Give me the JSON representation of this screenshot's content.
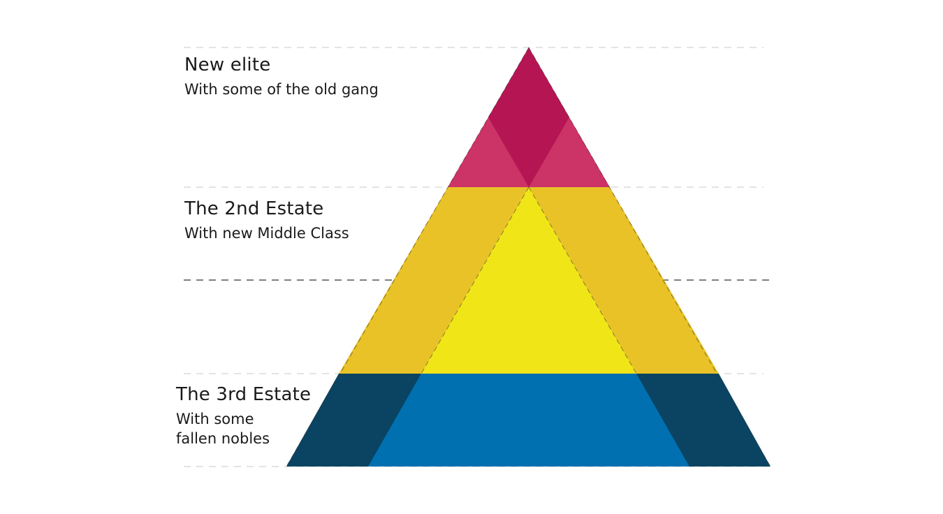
{
  "colors": {
    "background": "#ffffff",
    "guide_light": "#c8c8c8",
    "guide_dark": "#333333",
    "text": "#1a1a1a",
    "top_core": "#b51653",
    "top_side": "#cc3366",
    "middle_core": "#f0e617",
    "middle_side": "#e8c227",
    "bottom_core": "#0070b0",
    "bottom_side": "#0a4462"
  },
  "tiers": [
    {
      "title": "New elite",
      "subtitle_lines": [
        "With some of the old gang"
      ]
    },
    {
      "title": "The 2nd Estate",
      "subtitle_lines": [
        "With new Middle Class"
      ]
    },
    {
      "title": "The 3rd Estate",
      "subtitle_lines": [
        "With some",
        "fallen nobles"
      ]
    }
  ]
}
